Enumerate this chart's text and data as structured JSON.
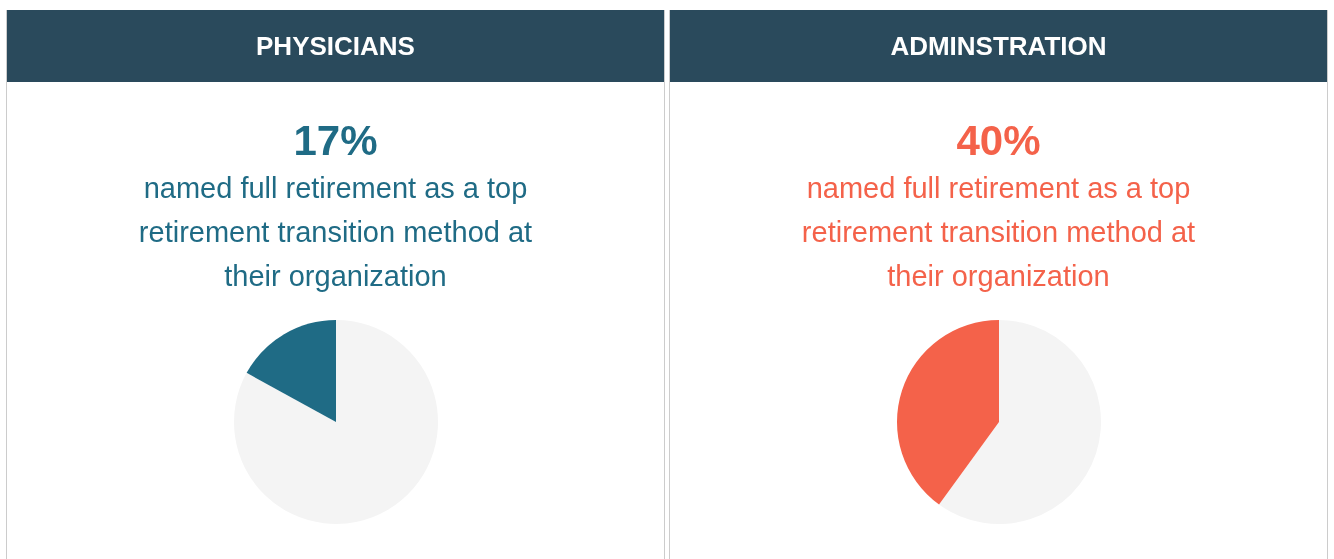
{
  "chart_data": [
    {
      "type": "pie",
      "title": "PHYSICIANS",
      "subtitle": "17%",
      "annotations": [
        "named full retirement as a top retirement transition method at their organization"
      ],
      "categories": [
        null,
        null
      ],
      "values": [
        83,
        17
      ],
      "colors": [
        "#f4f4f4",
        "#1f6b85"
      ]
    },
    {
      "type": "pie",
      "title": "ADMINSTRATION",
      "subtitle": "40%",
      "annotations": [
        "named full retirement as a top retirement transition method at their organization"
      ],
      "categories": [
        null,
        null
      ],
      "values": [
        60,
        40
      ],
      "colors": [
        "#f4f4f4",
        "#f4624a"
      ]
    }
  ]
}
